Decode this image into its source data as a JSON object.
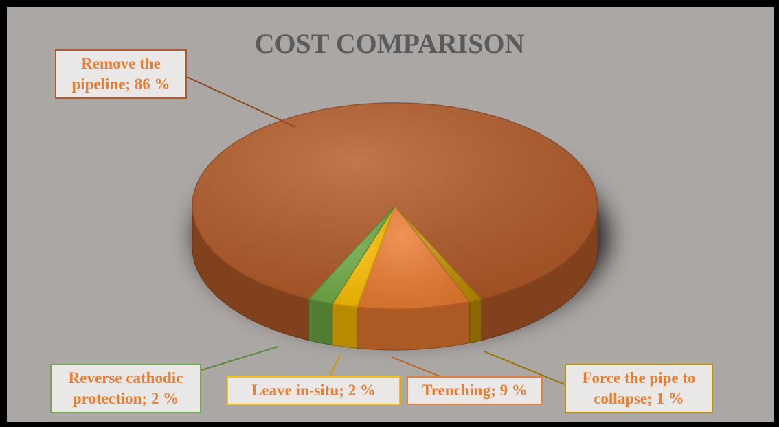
{
  "chart_data": {
    "type": "pie3d",
    "title": "COST COMPARISON",
    "values": [
      86,
      1,
      9,
      2,
      2
    ],
    "value_labels": [
      "Remove the pipeline; 86 %",
      "Force the pipe to collapse; 1 %",
      "Trenching; 9 %",
      "Leave in-situ; 2 %",
      "Reverse cathodic protection; 2 %"
    ],
    "colors": [
      "#b35a28",
      "#bf9000",
      "#ed7d31",
      "#ffc000",
      "#70ad47"
    ]
  }
}
